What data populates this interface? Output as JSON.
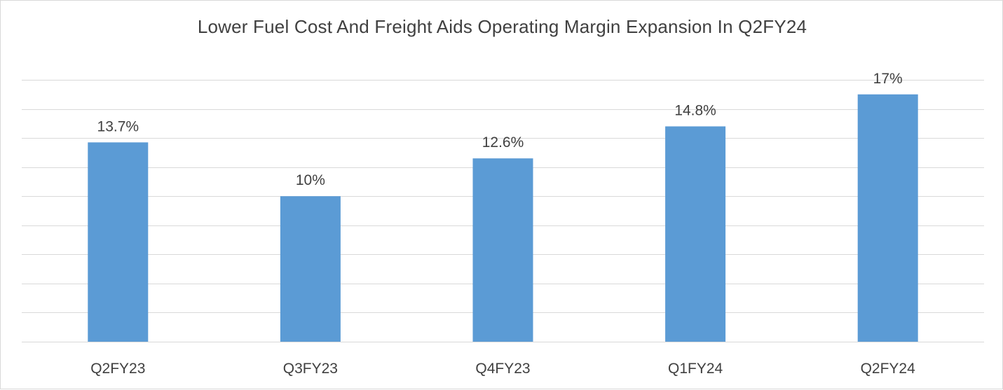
{
  "chart_data": {
    "type": "bar",
    "title": "Lower Fuel Cost And Freight Aids Operating Margin Expansion In Q2FY24",
    "categories": [
      "Q2FY23",
      "Q3FY23",
      "Q4FY23",
      "Q1FY24",
      "Q2FY24"
    ],
    "values": [
      13.7,
      10,
      12.6,
      14.8,
      17
    ],
    "data_labels": [
      "13.7%",
      "10%",
      "12.6%",
      "14.8%",
      "17%"
    ],
    "xlabel": "",
    "ylabel": "",
    "ylim": [
      0,
      18
    ],
    "y_axis_labels_visible": false,
    "grid": true,
    "legend": "none",
    "bar_color": "#5b9bd5",
    "grid_color": "#d9d9d9"
  }
}
